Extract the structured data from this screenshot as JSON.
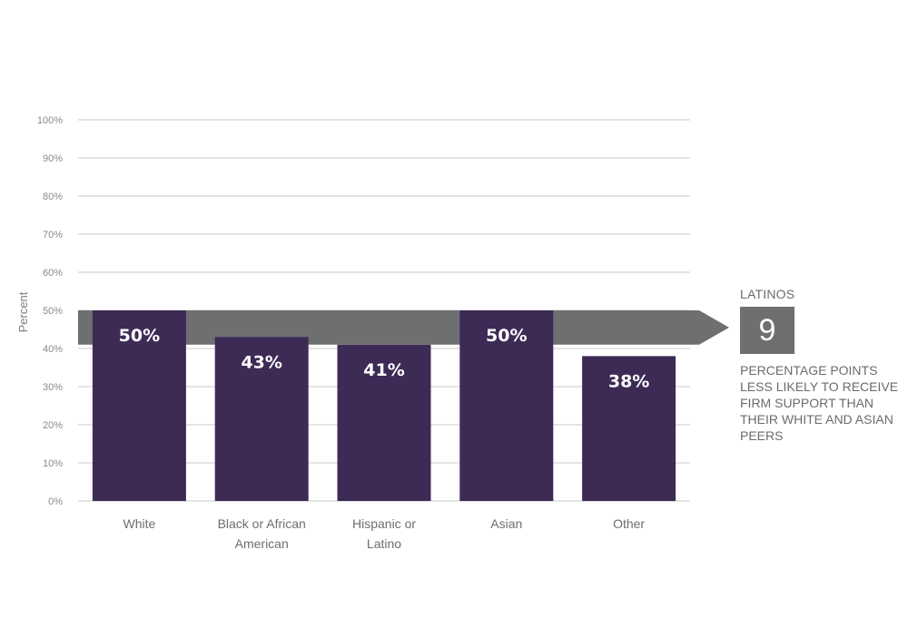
{
  "chart_data": {
    "type": "bar",
    "categories": [
      [
        "White"
      ],
      [
        "Black or African",
        "American"
      ],
      [
        "Hispanic or",
        "Latino"
      ],
      [
        "Asian"
      ],
      [
        "Other"
      ]
    ],
    "values": [
      50,
      43,
      41,
      50,
      38
    ],
    "value_labels": [
      "50%",
      "43%",
      "41%",
      "50%",
      "38%"
    ],
    "ylabel": "Percent",
    "ylim": [
      0,
      100
    ],
    "yticks": [
      "0%",
      "10%",
      "20%",
      "30%",
      "40%",
      "50%",
      "60%",
      "70%",
      "80%",
      "90%",
      "100%"
    ],
    "grid": true,
    "colors": {
      "bar": "#3d2b56",
      "highlight_band": "#6e6f71",
      "grid": "#c8c8c8"
    },
    "highlight_band": {
      "from": 41,
      "to": 50
    }
  },
  "callout": {
    "title": "LATINOS",
    "number": "9",
    "text": "PERCENTAGE POINTS LESS LIKELY TO RECEIVE FIRM SUPPORT THAN THEIR WHITE AND ASIAN PEERS"
  }
}
